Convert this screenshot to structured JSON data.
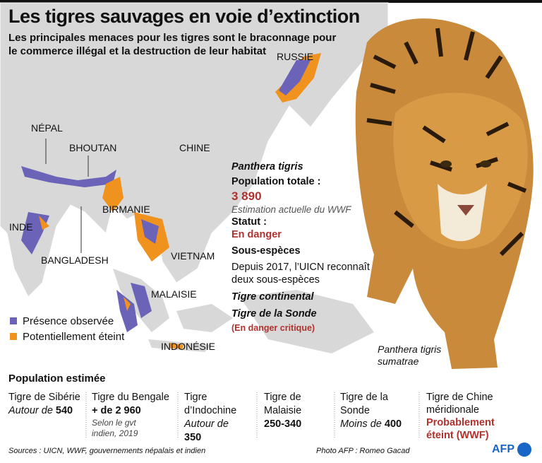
{
  "header": {
    "title": "Les tigres sauvages en voie d’extinction",
    "subtitle": "Les principales menaces pour les tigres sont le braconnage pour le commerce illégal et la destruction de leur habitat"
  },
  "map": {
    "labels": [
      "RUSSIE",
      "NÉPAL",
      "BHOUTAN",
      "CHINE",
      "BIRMANIE",
      "INDE",
      "BANGLADESH",
      "VIETNAM",
      "MALAISIE",
      "INDONÉSIE"
    ],
    "legend": [
      "Présence observée",
      "Potentiellement éteint"
    ]
  },
  "info": {
    "species": "Panthera tigris",
    "population_label": "Population totale :",
    "population": "3 890",
    "population_note": "Estimation actuelle du WWF",
    "status_label": "Statut :",
    "status": "En danger",
    "subspecies_label": "Sous-espèces",
    "subspecies_text": "Depuis 2017, l’UICN reconnaît deux sous-espèces",
    "subspecies": [
      "Tigre continental",
      "Tigre de la Sonde"
    ],
    "subspecies_status": "(En danger critique)"
  },
  "photo_caption": "Panthera tigris sumatrae",
  "population": {
    "title": "Population estimée",
    "columns": [
      {
        "name": "Tigre de Sibérie",
        "prefix": "Autour de",
        "value": "540"
      },
      {
        "name": "Tigre du Bengale",
        "value": "+ de 2 960",
        "note": "Selon le gvt indien, 2019"
      },
      {
        "name": "Tigre d’Indochine",
        "prefix": "Autour de",
        "value": "350"
      },
      {
        "name": "Tigre de Malaisie",
        "value": "250-340"
      },
      {
        "name": "Tigre de la Sonde",
        "prefix": "Moins de",
        "value": "400"
      },
      {
        "name": "Tigre de Chine méridionale",
        "status": "Probablement éteint (WWF)"
      }
    ]
  },
  "footer": {
    "sources": "Sources : UICN, WWF, gouvernements népalais et indien",
    "credit": "Photo AFP : Romeo Gacad",
    "logo": "AFP"
  }
}
